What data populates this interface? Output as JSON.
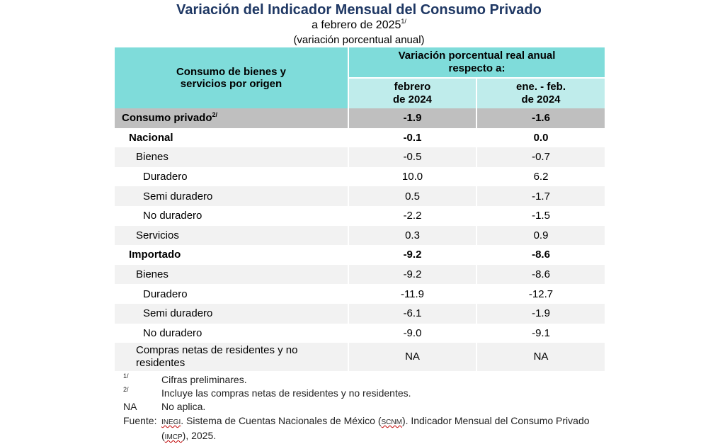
{
  "title": "Variación del Indicador Mensual del Consumo Privado",
  "subtitle": "a febrero de 2025",
  "subtitle_note": "1/",
  "unit": "(variación porcentual anual)",
  "table": {
    "header_left": "Consumo de bienes y servicios por origen",
    "header_group": "Variación porcentual real anual respecto a:",
    "col1": "febrero de 2024",
    "col2": "ene. - feb. de 2024",
    "rows": [
      {
        "label": "Consumo privado",
        "note": "2/",
        "v1": "-1.9",
        "v2": "-1.6"
      },
      {
        "label": "Nacional",
        "v1": "-0.1",
        "v2": "0.0"
      },
      {
        "label": "Bienes",
        "v1": "-0.5",
        "v2": "-0.7"
      },
      {
        "label": "Duradero",
        "v1": "10.0",
        "v2": "6.2"
      },
      {
        "label": "Semi duradero",
        "v1": "0.5",
        "v2": "-1.7"
      },
      {
        "label": "No duradero",
        "v1": "-2.2",
        "v2": "-1.5"
      },
      {
        "label": "Servicios",
        "v1": "0.3",
        "v2": "0.9"
      },
      {
        "label": "Importado",
        "v1": "-9.2",
        "v2": "-8.6"
      },
      {
        "label": "Bienes",
        "v1": "-9.2",
        "v2": "-8.6"
      },
      {
        "label": "Duradero",
        "v1": "-11.9",
        "v2": "-12.7"
      },
      {
        "label": "Semi duradero",
        "v1": "-6.1",
        "v2": "-1.9"
      },
      {
        "label": "No duradero",
        "v1": "-9.0",
        "v2": "-9.1"
      },
      {
        "label": "Compras netas de residentes y no residentes",
        "v1": "NA",
        "v2": "NA"
      }
    ]
  },
  "notes": [
    {
      "mark": "1/",
      "text": "Cifras preliminares."
    },
    {
      "mark": "2/",
      "text": "Incluye las compras netas de residentes y no residentes."
    },
    {
      "mark": "NA",
      "text": "No aplica."
    }
  ],
  "source": {
    "label": "Fuente:",
    "inegi": "INEGI",
    "text1": ". Sistema de Cuentas Nacionales de México (",
    "scnm": "SCNM",
    "text2": "). Indicador Mensual del Consumo Privado (",
    "imcp": "IMCP",
    "text3": "), 2025."
  }
}
